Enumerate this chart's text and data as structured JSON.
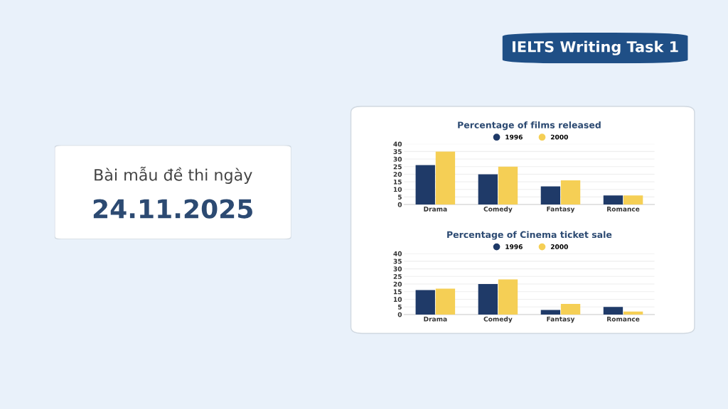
{
  "chart_data": [
    {
      "type": "other",
      "title": "IELTS Writing Task 1"
    },
    {
      "type": "other",
      "title": "Bài mẫu đề thi ngày",
      "subtitle": "24.11.2025"
    },
    {
      "type": "bar",
      "title": "Percentage of films released",
      "categories": [
        "Drama",
        "Comedy",
        "Fantasy",
        "Romance"
      ],
      "series": [
        {
          "name": "1996",
          "color": "#1f3a68",
          "values": [
            26,
            20,
            12,
            6
          ]
        },
        {
          "name": "2000",
          "color": "#f5cf55",
          "values": [
            35,
            25,
            16,
            6
          ]
        }
      ],
      "ylim": [
        0,
        40
      ],
      "yticks": [
        0,
        5,
        10,
        15,
        20,
        25,
        30,
        35,
        40
      ],
      "grid": "y",
      "legend": "top"
    },
    {
      "type": "bar",
      "title": "Percentage of Cinema ticket sale",
      "categories": [
        "Drama",
        "Comedy",
        "Fantasy",
        "Romance"
      ],
      "series": [
        {
          "name": "1996",
          "color": "#1f3a68",
          "values": [
            16,
            20,
            3,
            5
          ]
        },
        {
          "name": "2000",
          "color": "#f5cf55",
          "values": [
            17,
            23,
            7,
            2
          ]
        }
      ],
      "ylim": [
        0,
        40
      ],
      "yticks": [
        0,
        5,
        10,
        15,
        20,
        25,
        30,
        35,
        40
      ],
      "grid": "y",
      "legend": "top"
    }
  ]
}
